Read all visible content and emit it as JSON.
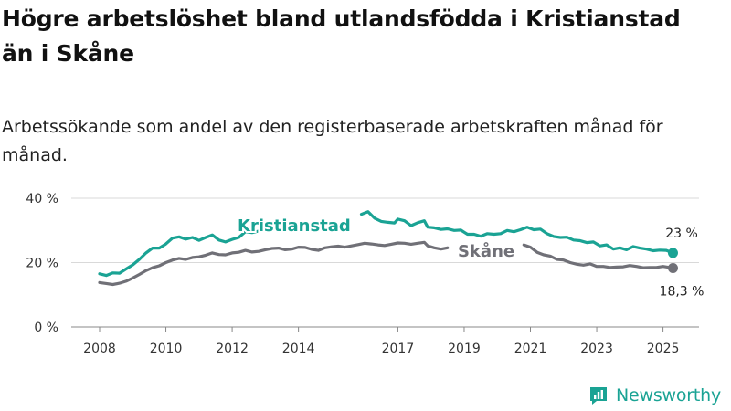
{
  "title": "Högre arbetslöshet bland utlandsfödda i Kristianstad än i Skåne",
  "subtitle": "Arbetssökande som andel av den registerbaserade arbetskraften månad för månad.",
  "brand": {
    "name": "Newsworthy",
    "icon": "newsworthy-logo-icon",
    "color": "#1aa394"
  },
  "chart_data": {
    "type": "line",
    "ylim": [
      0,
      40
    ],
    "yticks": [
      0,
      20,
      40
    ],
    "ytick_labels": [
      "0 %",
      "20 %",
      "40 %"
    ],
    "xlim": [
      2007.6,
      2025.9
    ],
    "xticks": [
      2008,
      2010,
      2012,
      2014,
      2017,
      2019,
      2021,
      2023,
      2025
    ],
    "xtick_labels": [
      "2008",
      "2010",
      "2012",
      "2014",
      "2017",
      "2019",
      "2021",
      "2023",
      "2025"
    ],
    "grid": true,
    "series": [
      {
        "name": "Kristianstad",
        "color": "#1aa394",
        "end_label": "23 %",
        "segments": [
          [
            [
              2008.0,
              16.5
            ],
            [
              2008.2,
              16.0
            ],
            [
              2008.4,
              16.8
            ],
            [
              2008.6,
              16.7
            ],
            [
              2008.8,
              18.0
            ],
            [
              2009.0,
              19.3
            ],
            [
              2009.2,
              21.0
            ],
            [
              2009.4,
              23.0
            ],
            [
              2009.6,
              24.5
            ],
            [
              2009.8,
              24.5
            ],
            [
              2010.0,
              25.8
            ],
            [
              2010.2,
              27.6
            ],
            [
              2010.4,
              28.0
            ],
            [
              2010.6,
              27.3
            ],
            [
              2010.8,
              27.8
            ],
            [
              2011.0,
              26.9
            ],
            [
              2011.2,
              27.8
            ],
            [
              2011.4,
              28.6
            ],
            [
              2011.6,
              27.0
            ],
            [
              2011.8,
              26.4
            ],
            [
              2012.0,
              27.2
            ],
            [
              2012.2,
              27.8
            ],
            [
              2012.4,
              29.6
            ],
            [
              2012.6,
              29.3
            ],
            [
              2012.8,
              29.8
            ],
            [
              2013.0,
              30.0
            ]
          ],
          [
            [
              2015.9,
              35.0
            ],
            [
              2016.1,
              35.8
            ],
            [
              2016.3,
              33.8
            ],
            [
              2016.5,
              32.8
            ],
            [
              2016.7,
              32.5
            ],
            [
              2016.9,
              32.3
            ],
            [
              2017.0,
              33.5
            ],
            [
              2017.2,
              33.0
            ],
            [
              2017.4,
              31.5
            ],
            [
              2017.6,
              32.4
            ],
            [
              2017.8,
              33.0
            ],
            [
              2017.9,
              31.0
            ],
            [
              2018.1,
              30.8
            ],
            [
              2018.3,
              30.3
            ],
            [
              2018.5,
              30.5
            ],
            [
              2018.7,
              30.0
            ],
            [
              2018.9,
              30.1
            ],
            [
              2019.1,
              28.8
            ],
            [
              2019.3,
              28.8
            ],
            [
              2019.5,
              28.2
            ],
            [
              2019.7,
              29.0
            ],
            [
              2019.9,
              28.8
            ],
            [
              2020.1,
              29.0
            ],
            [
              2020.3,
              30.0
            ],
            [
              2020.5,
              29.6
            ],
            [
              2020.7,
              30.2
            ],
            [
              2020.9,
              31.0
            ],
            [
              2021.1,
              30.2
            ],
            [
              2021.3,
              30.4
            ],
            [
              2021.5,
              29.0
            ],
            [
              2021.7,
              28.1
            ],
            [
              2021.9,
              27.8
            ],
            [
              2022.1,
              27.9
            ],
            [
              2022.3,
              27.0
            ],
            [
              2022.5,
              26.8
            ],
            [
              2022.7,
              26.2
            ],
            [
              2022.9,
              26.4
            ],
            [
              2023.1,
              25.2
            ],
            [
              2023.3,
              25.5
            ],
            [
              2023.5,
              24.2
            ],
            [
              2023.7,
              24.6
            ],
            [
              2023.9,
              24.0
            ],
            [
              2024.1,
              25.0
            ],
            [
              2024.3,
              24.5
            ],
            [
              2024.5,
              24.2
            ],
            [
              2024.7,
              23.7
            ],
            [
              2024.9,
              23.9
            ],
            [
              2025.1,
              23.8
            ],
            [
              2025.3,
              23.0
            ]
          ]
        ]
      },
      {
        "name": "Skåne",
        "color": "#707077",
        "end_label": "18,3 %",
        "segments": [
          [
            [
              2008.0,
              13.8
            ],
            [
              2008.2,
              13.5
            ],
            [
              2008.4,
              13.2
            ],
            [
              2008.6,
              13.6
            ],
            [
              2008.8,
              14.2
            ],
            [
              2009.0,
              15.2
            ],
            [
              2009.2,
              16.3
            ],
            [
              2009.4,
              17.5
            ],
            [
              2009.6,
              18.4
            ],
            [
              2009.8,
              19.0
            ],
            [
              2010.0,
              20.0
            ],
            [
              2010.2,
              20.8
            ],
            [
              2010.4,
              21.3
            ],
            [
              2010.6,
              21.0
            ],
            [
              2010.8,
              21.6
            ],
            [
              2011.0,
              21.8
            ],
            [
              2011.2,
              22.3
            ],
            [
              2011.4,
              23.0
            ],
            [
              2011.6,
              22.5
            ],
            [
              2011.8,
              22.4
            ],
            [
              2012.0,
              23.0
            ],
            [
              2012.2,
              23.2
            ],
            [
              2012.4,
              23.8
            ],
            [
              2012.6,
              23.3
            ],
            [
              2012.8,
              23.5
            ],
            [
              2013.0,
              24.0
            ],
            [
              2013.2,
              24.4
            ],
            [
              2013.4,
              24.5
            ],
            [
              2013.6,
              24.0
            ],
            [
              2013.8,
              24.2
            ],
            [
              2014.0,
              24.8
            ],
            [
              2014.2,
              24.7
            ],
            [
              2014.4,
              24.1
            ],
            [
              2014.6,
              23.8
            ],
            [
              2014.8,
              24.6
            ],
            [
              2015.0,
              24.9
            ],
            [
              2015.2,
              25.1
            ],
            [
              2015.4,
              24.8
            ],
            [
              2015.6,
              25.2
            ],
            [
              2015.8,
              25.6
            ],
            [
              2016.0,
              26.0
            ],
            [
              2016.2,
              25.8
            ],
            [
              2016.4,
              25.5
            ],
            [
              2016.6,
              25.3
            ],
            [
              2016.8,
              25.7
            ],
            [
              2017.0,
              26.1
            ],
            [
              2017.2,
              26.0
            ],
            [
              2017.4,
              25.7
            ],
            [
              2017.6,
              26.0
            ],
            [
              2017.8,
              26.3
            ],
            [
              2017.9,
              25.2
            ],
            [
              2018.1,
              24.6
            ],
            [
              2018.3,
              24.2
            ],
            [
              2018.5,
              24.6
            ]
          ],
          [
            [
              2020.8,
              25.5
            ],
            [
              2021.0,
              24.8
            ],
            [
              2021.2,
              23.2
            ],
            [
              2021.4,
              22.4
            ],
            [
              2021.6,
              22.0
            ],
            [
              2021.8,
              21.0
            ],
            [
              2022.0,
              20.8
            ],
            [
              2022.2,
              20.0
            ],
            [
              2022.4,
              19.5
            ],
            [
              2022.6,
              19.2
            ],
            [
              2022.8,
              19.6
            ],
            [
              2023.0,
              18.8
            ],
            [
              2023.2,
              18.8
            ],
            [
              2023.4,
              18.5
            ],
            [
              2023.6,
              18.6
            ],
            [
              2023.8,
              18.7
            ],
            [
              2024.0,
              19.1
            ],
            [
              2024.2,
              18.8
            ],
            [
              2024.4,
              18.4
            ],
            [
              2024.6,
              18.5
            ],
            [
              2024.8,
              18.5
            ],
            [
              2025.0,
              18.8
            ],
            [
              2025.2,
              18.5
            ],
            [
              2025.3,
              18.3
            ]
          ]
        ]
      }
    ]
  }
}
